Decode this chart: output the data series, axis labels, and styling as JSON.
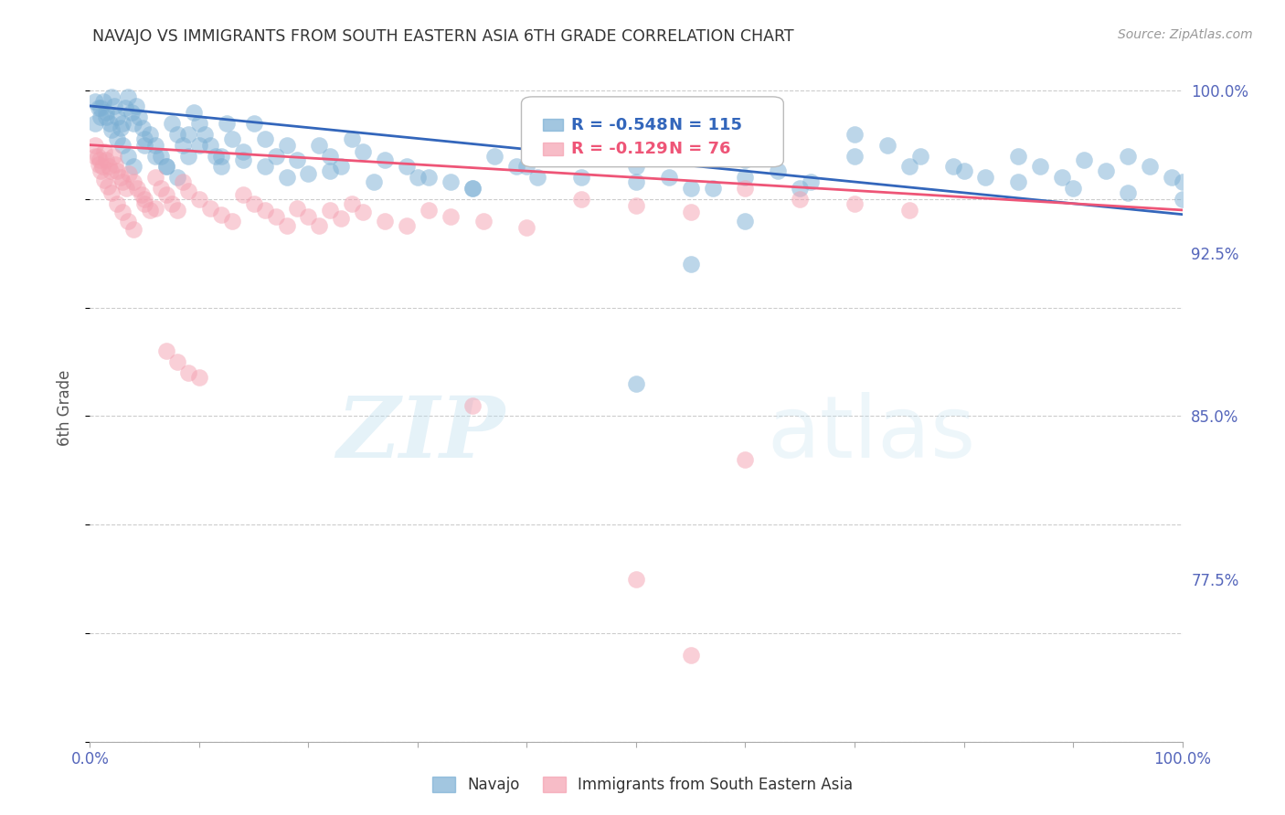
{
  "title": "NAVAJO VS IMMIGRANTS FROM SOUTH EASTERN ASIA 6TH GRADE CORRELATION CHART",
  "source": "Source: ZipAtlas.com",
  "ylabel": "6th Grade",
  "legend_blue_label": "Navajo",
  "legend_pink_label": "Immigrants from South Eastern Asia",
  "blue_R": "-0.548",
  "blue_N": "115",
  "pink_R": "-0.129",
  "pink_N": "76",
  "blue_color": "#7BAFD4",
  "pink_color": "#F4A0B0",
  "blue_line_color": "#3366BB",
  "pink_line_color": "#EE5577",
  "watermark_zip": "ZIP",
  "watermark_atlas": "atlas",
  "background_color": "#FFFFFF",
  "grid_color": "#CCCCCC",
  "title_color": "#333333",
  "source_color": "#999999",
  "axis_label_color": "#5566BB",
  "xlim": [
    0.0,
    1.0
  ],
  "ylim": [
    0.7,
    1.008
  ],
  "y_tick_positions": [
    1.0,
    0.925,
    0.85,
    0.775
  ],
  "y_tick_labels": [
    "100.0%",
    "92.5%",
    "85.0%",
    "77.5%"
  ],
  "blue_trend": [
    0.0,
    1.0,
    0.993,
    0.943
  ],
  "pink_trend": [
    0.0,
    1.0,
    0.975,
    0.945
  ],
  "blue_scatter_x": [
    0.005,
    0.008,
    0.01,
    0.012,
    0.015,
    0.018,
    0.02,
    0.022,
    0.025,
    0.028,
    0.03,
    0.032,
    0.035,
    0.038,
    0.04,
    0.042,
    0.045,
    0.048,
    0.05,
    0.055,
    0.06,
    0.065,
    0.07,
    0.075,
    0.08,
    0.085,
    0.09,
    0.095,
    0.1,
    0.105,
    0.11,
    0.115,
    0.12,
    0.125,
    0.13,
    0.14,
    0.15,
    0.16,
    0.17,
    0.18,
    0.19,
    0.2,
    0.21,
    0.22,
    0.23,
    0.24,
    0.25,
    0.27,
    0.29,
    0.31,
    0.33,
    0.35,
    0.37,
    0.39,
    0.41,
    0.44,
    0.47,
    0.5,
    0.53,
    0.57,
    0.6,
    0.63,
    0.66,
    0.7,
    0.73,
    0.76,
    0.79,
    0.82,
    0.85,
    0.87,
    0.89,
    0.91,
    0.93,
    0.95,
    0.97,
    0.99,
    1.0,
    0.005,
    0.01,
    0.015,
    0.02,
    0.025,
    0.03,
    0.035,
    0.04,
    0.05,
    0.06,
    0.07,
    0.08,
    0.09,
    0.1,
    0.12,
    0.14,
    0.16,
    0.18,
    0.22,
    0.26,
    0.3,
    0.35,
    0.4,
    0.45,
    0.5,
    0.55,
    0.6,
    0.65,
    0.7,
    0.75,
    0.8,
    0.85,
    0.9,
    0.95,
    1.0,
    0.5,
    0.55,
    0.6
  ],
  "blue_scatter_y": [
    0.995,
    0.992,
    0.988,
    0.995,
    0.99,
    0.985,
    0.997,
    0.993,
    0.988,
    0.983,
    0.985,
    0.992,
    0.997,
    0.99,
    0.985,
    0.993,
    0.988,
    0.983,
    0.978,
    0.98,
    0.975,
    0.97,
    0.965,
    0.985,
    0.98,
    0.975,
    0.97,
    0.99,
    0.985,
    0.98,
    0.975,
    0.97,
    0.965,
    0.985,
    0.978,
    0.972,
    0.985,
    0.978,
    0.97,
    0.975,
    0.968,
    0.962,
    0.975,
    0.97,
    0.965,
    0.978,
    0.972,
    0.968,
    0.965,
    0.96,
    0.958,
    0.955,
    0.97,
    0.965,
    0.96,
    0.975,
    0.97,
    0.965,
    0.96,
    0.955,
    0.968,
    0.963,
    0.958,
    0.98,
    0.975,
    0.97,
    0.965,
    0.96,
    0.97,
    0.965,
    0.96,
    0.968,
    0.963,
    0.97,
    0.965,
    0.96,
    0.958,
    0.985,
    0.992,
    0.988,
    0.982,
    0.978,
    0.975,
    0.97,
    0.965,
    0.975,
    0.97,
    0.965,
    0.96,
    0.98,
    0.975,
    0.97,
    0.968,
    0.965,
    0.96,
    0.963,
    0.958,
    0.96,
    0.955,
    0.965,
    0.96,
    0.958,
    0.955,
    0.96,
    0.955,
    0.97,
    0.965,
    0.963,
    0.958,
    0.955,
    0.953,
    0.95,
    0.865,
    0.92,
    0.94
  ],
  "pink_scatter_x": [
    0.005,
    0.007,
    0.009,
    0.011,
    0.013,
    0.015,
    0.017,
    0.019,
    0.021,
    0.023,
    0.025,
    0.028,
    0.03,
    0.033,
    0.036,
    0.04,
    0.043,
    0.047,
    0.05,
    0.055,
    0.06,
    0.065,
    0.07,
    0.075,
    0.08,
    0.085,
    0.09,
    0.1,
    0.11,
    0.12,
    0.13,
    0.14,
    0.15,
    0.16,
    0.17,
    0.18,
    0.19,
    0.2,
    0.21,
    0.22,
    0.23,
    0.24,
    0.25,
    0.27,
    0.29,
    0.31,
    0.33,
    0.36,
    0.4,
    0.45,
    0.5,
    0.55,
    0.6,
    0.65,
    0.7,
    0.75,
    0.005,
    0.008,
    0.01,
    0.013,
    0.016,
    0.02,
    0.025,
    0.03,
    0.035,
    0.04,
    0.05,
    0.06,
    0.07,
    0.08,
    0.09,
    0.1,
    0.35,
    0.5,
    0.55,
    0.6
  ],
  "pink_scatter_y": [
    0.975,
    0.97,
    0.968,
    0.965,
    0.972,
    0.968,
    0.965,
    0.963,
    0.97,
    0.966,
    0.963,
    0.96,
    0.958,
    0.955,
    0.962,
    0.958,
    0.955,
    0.952,
    0.948,
    0.945,
    0.96,
    0.955,
    0.952,
    0.948,
    0.945,
    0.958,
    0.954,
    0.95,
    0.946,
    0.943,
    0.94,
    0.952,
    0.948,
    0.945,
    0.942,
    0.938,
    0.946,
    0.942,
    0.938,
    0.945,
    0.941,
    0.948,
    0.944,
    0.94,
    0.938,
    0.945,
    0.942,
    0.94,
    0.937,
    0.95,
    0.947,
    0.944,
    0.955,
    0.95,
    0.948,
    0.945,
    0.97,
    0.966,
    0.963,
    0.959,
    0.956,
    0.953,
    0.948,
    0.944,
    0.94,
    0.936,
    0.95,
    0.946,
    0.88,
    0.875,
    0.87,
    0.868,
    0.855,
    0.775,
    0.74,
    0.83
  ]
}
